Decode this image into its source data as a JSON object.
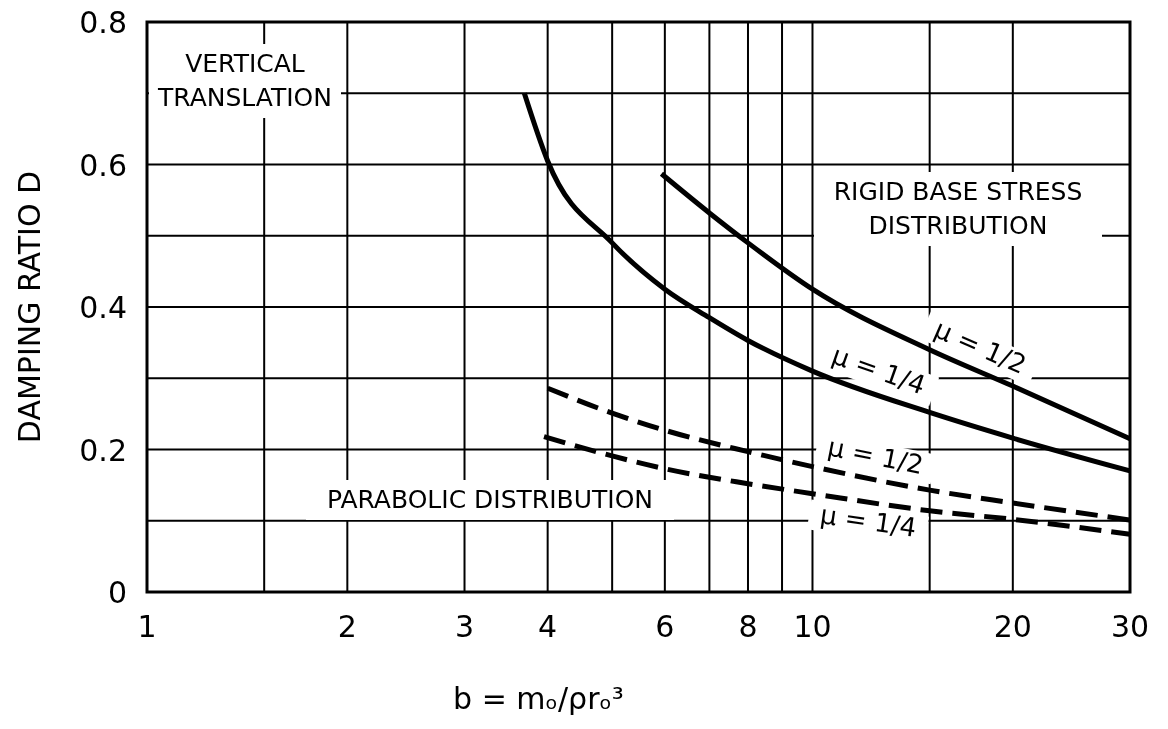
{
  "chart_data": {
    "type": "line",
    "xlabel": "b = mₒ/ρrₒ³",
    "ylabel": "DAMPING RATIO D",
    "log": "x",
    "grid": true,
    "legend": false,
    "xlim": [
      1,
      30
    ],
    "xticks": [
      {
        "value": 1,
        "label": "1"
      },
      {
        "value": 1.5,
        "label": null
      },
      2,
      3,
      4,
      {
        "value": 5,
        "label": null
      },
      6,
      {
        "value": 7,
        "label": null
      },
      8,
      {
        "value": 9,
        "label": null
      },
      10,
      {
        "value": 15,
        "label": null
      },
      20,
      30
    ],
    "ylim": [
      0,
      0.8
    ],
    "yticks": [
      0,
      {
        "value": 0.1,
        "label": null
      },
      0.2,
      {
        "value": 0.3,
        "label": null
      },
      0.4,
      {
        "value": 0.5,
        "label": null
      },
      0.6,
      {
        "value": 0.7,
        "label": null
      },
      0.8
    ],
    "series": [
      {
        "name": "μ = 1/2",
        "color": "#000000",
        "line_style": "solid",
        "x": [
          5.93,
          7,
          8,
          10,
          15,
          20,
          30
        ],
        "values": [
          0.587,
          0.532,
          0.49,
          0.425,
          0.34,
          0.289,
          0.215
        ]
      },
      {
        "name": "μ = 1/4",
        "color": "#000000",
        "line_style": "solid",
        "x": [
          3.69,
          4,
          5,
          6,
          7,
          8,
          10,
          15,
          20,
          30
        ],
        "values": [
          0.7,
          0.605,
          0.49,
          0.425,
          0.385,
          0.353,
          0.31,
          0.252,
          0.216,
          0.17
        ]
      },
      {
        "name": "μ = 1/2",
        "color": "#000000",
        "line_style": "dashed",
        "x": [
          4,
          5,
          6,
          8,
          10,
          15,
          20,
          30
        ],
        "values": [
          0.286,
          0.251,
          0.227,
          0.197,
          0.176,
          0.143,
          0.125,
          0.101
        ]
      },
      {
        "name": "μ = 1/4",
        "color": "#000000",
        "line_style": "dashed",
        "x": [
          3.95,
          5,
          6,
          8,
          10,
          15,
          20,
          30
        ],
        "values": [
          0.218,
          0.191,
          0.173,
          0.152,
          0.138,
          0.114,
          0.102,
          0.081
        ]
      }
    ],
    "annotations": [
      "VERTICAL\nTRANSLATION",
      "RIGID BASE STRESS\nDISTRIBUTION",
      "PARABOLIC DISTRIBUTION"
    ]
  }
}
